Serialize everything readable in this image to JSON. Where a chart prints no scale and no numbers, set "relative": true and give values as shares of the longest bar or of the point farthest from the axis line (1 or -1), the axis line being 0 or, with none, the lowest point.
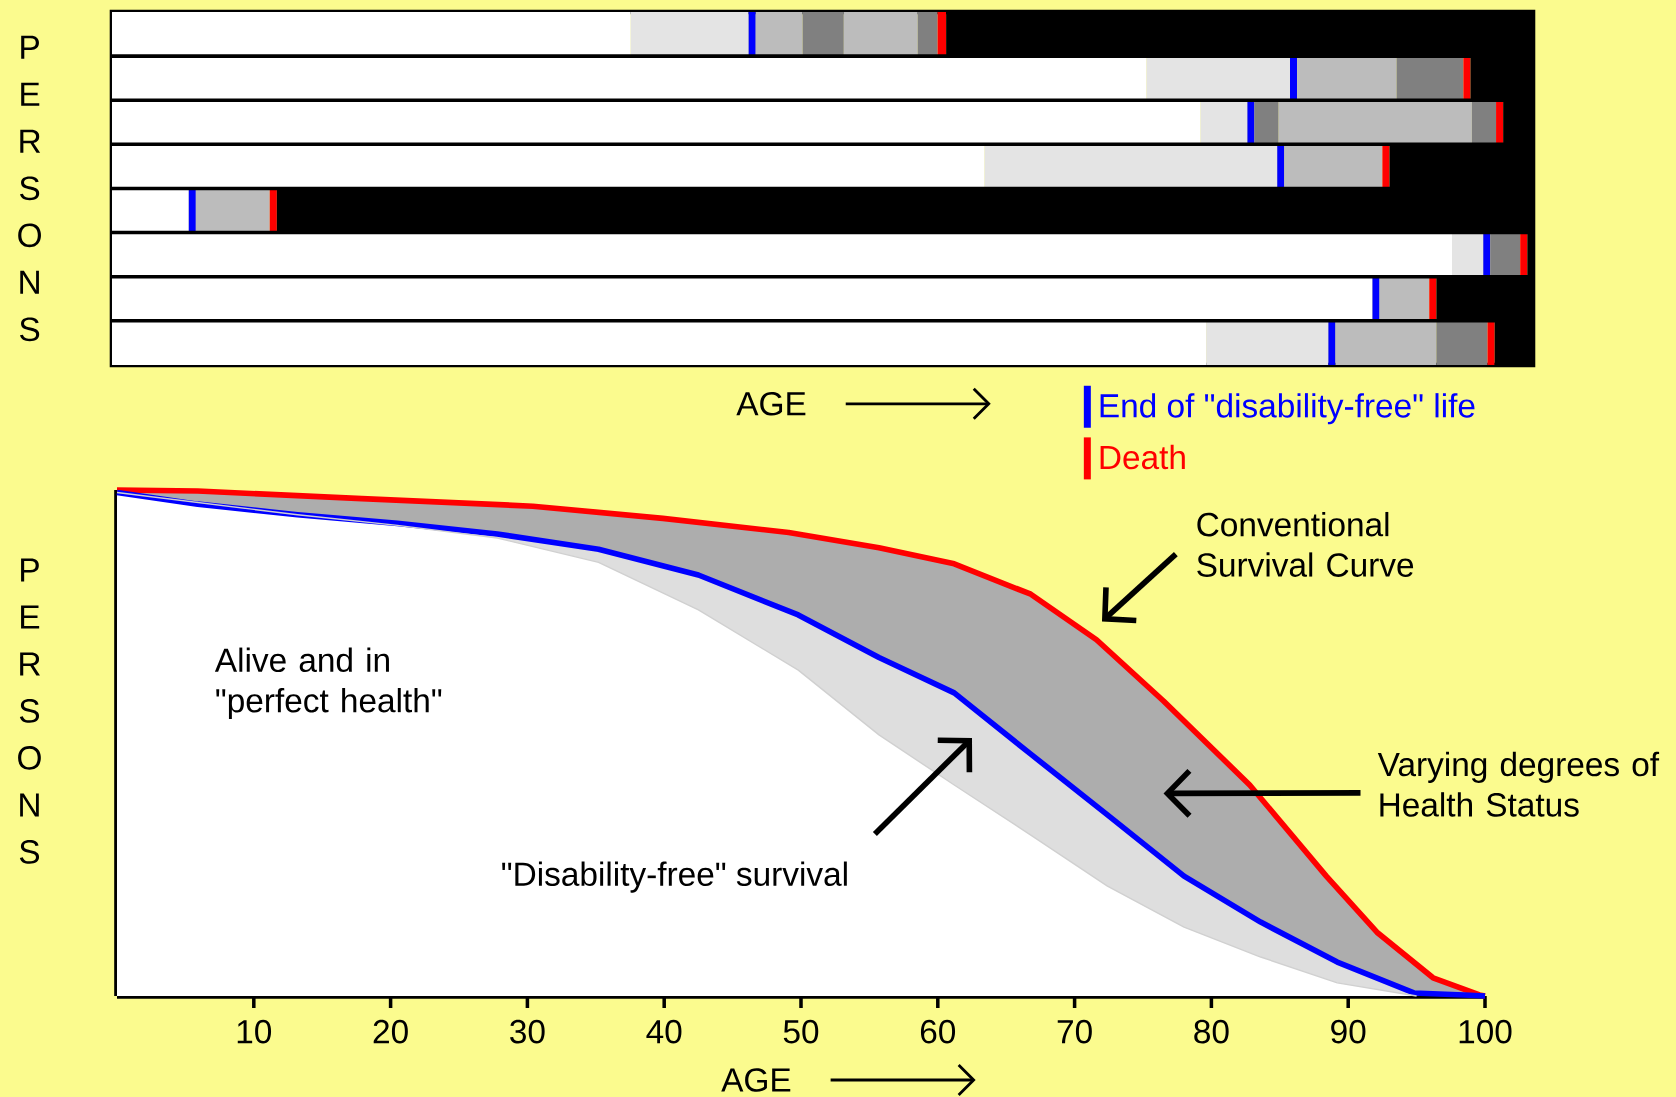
{
  "chart_data": [
    {
      "type": "bar",
      "orientation": "horizontal",
      "stacked": true,
      "relative": true,
      "xlabel": "AGE",
      "ylabel": "PERSONS",
      "legend": "bottom right",
      "categories": [
        null,
        null,
        null,
        null,
        null,
        null,
        null,
        null
      ],
      "series": [
        {
          "color": "#ffffff",
          "values": [
            0.365,
            0.728,
            0.766,
            0.614,
            0.054,
            0.943,
            0.887,
            0.77
          ]
        },
        {
          "color": "#e4e4e4",
          "values": [
            0.083,
            0.101,
            0.033,
            0.206,
            null,
            0.022,
            null,
            0.086
          ]
        },
        {
          "name": "End of \"disability-free\" life",
          "color": "#0000ff",
          "values": [
            0.005,
            0.005,
            0.005,
            0.005,
            0.005,
            0.005,
            0.005,
            0.005
          ]
        },
        {
          "colors": [
            "#bcbcbc",
            "#bcbcbc",
            "#808080",
            "#bcbcbc",
            "#bcbcbc",
            "#808080",
            "#bcbcbc",
            "#bcbcbc"
          ],
          "values": [
            0.033,
            0.07,
            0.017,
            0.069,
            0.052,
            0.021,
            0.035,
            0.071
          ]
        },
        {
          "colors": [
            "#808080",
            "#808080",
            "#bcbcbc",
            null,
            null,
            null,
            null,
            "#808080"
          ],
          "values": [
            0.029,
            0.047,
            0.136,
            null,
            null,
            null,
            null,
            0.036
          ]
        },
        {
          "colors": [
            "#bcbcbc",
            null,
            "#808080",
            null,
            null,
            null,
            null,
            null
          ],
          "values": [
            0.052,
            null,
            0.017,
            null,
            null,
            null,
            null,
            null
          ]
        },
        {
          "colors": [
            "#808080",
            null,
            null,
            null,
            null,
            null,
            null,
            null
          ],
          "values": [
            0.014,
            null,
            null,
            null,
            null,
            null,
            null,
            null
          ]
        },
        {
          "name": "Death",
          "color": "#ff0000",
          "values": [
            0.006,
            0.005,
            0.005,
            0.005,
            0.005,
            0.005,
            0.005,
            0.005
          ]
        },
        {
          "color": "#000000",
          "values": [
            0.413,
            0.044,
            0.021,
            0.101,
            0.884,
            0.004,
            0.068,
            0.027
          ]
        }
      ]
    },
    {
      "type": "area",
      "relative": true,
      "xlabel": "AGE",
      "ylabel": "PERSONS",
      "xlim": [
        0,
        100
      ],
      "xticks": [
        10,
        20,
        30,
        40,
        50,
        60,
        70,
        80,
        90,
        100
      ],
      "series": [
        {
          "color": "#ff0000",
          "x": [
            0,
            5.9,
            17.9,
            30.4,
            39.9,
            49.1,
            55.7,
            61.2,
            66.8,
            71.6,
            76.5,
            82.8,
            88.4,
            92.1,
            96.2,
            99.6,
            100
          ],
          "values": [
            1,
            0.998,
            0.983,
            0.968,
            0.944,
            0.916,
            0.886,
            0.854,
            0.794,
            0.704,
            0.583,
            0.417,
            0.237,
            0.126,
            0.036,
            0.002,
            0
          ]
        },
        {
          "color": "#0000ff",
          "x": [
            0,
            5.9,
            13.2,
            20.5,
            27.8,
            35.2,
            42.5,
            49.8,
            55.7,
            61.2,
            66.8,
            72.4,
            78,
            83.6,
            89.2,
            94.8,
            98.5,
            100
          ],
          "values": [
            0.995,
            0.972,
            0.951,
            0.934,
            0.913,
            0.883,
            0.832,
            0.753,
            0.669,
            0.599,
            0.478,
            0.358,
            0.237,
            0.146,
            0.067,
            0.006,
            0.002,
            0
          ]
        },
        {
          "color": "#d0d0d0",
          "x": [
            0,
            13.2,
            20.5,
            27.8,
            35.2,
            42.5,
            49.8,
            55.7,
            61.2,
            66.8,
            72.4,
            78,
            83.6,
            89.2,
            95
          ],
          "values": [
            0.995,
            0.951,
            0.93,
            0.905,
            0.857,
            0.763,
            0.644,
            0.516,
            0.417,
            0.318,
            0.217,
            0.136,
            0.077,
            0.026,
            0
          ]
        }
      ],
      "annotations": [
        "Alive and in \"perfect health\"",
        "Conventional Survival Curve",
        "\"Disability-free\" survival",
        "Varying degrees of Health Status"
      ]
    }
  ]
}
